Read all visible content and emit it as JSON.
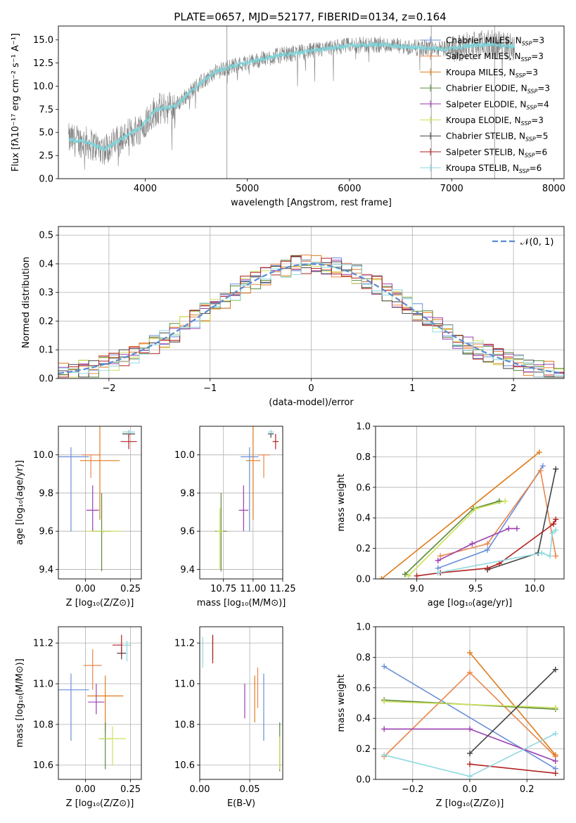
{
  "title": "PLATE=0657, MJD=52177, FIBERID=0134, z=0.164",
  "models": [
    {
      "name": "Chabrier MILES",
      "nssp": "3",
      "color": "#6a8fd8"
    },
    {
      "name": "Salpeter MILES",
      "nssp": "3",
      "color": "#e8864a"
    },
    {
      "name": "Kroupa MILES",
      "nssp": "3",
      "color": "#e07b1a"
    },
    {
      "name": "Chabrier ELODIE",
      "nssp": "3",
      "color": "#5a8a3a"
    },
    {
      "name": "Salpeter ELODIE",
      "nssp": "4",
      "color": "#9b3fb0"
    },
    {
      "name": "Kroupa ELODIE",
      "nssp": "3",
      "color": "#cde05a"
    },
    {
      "name": "Chabrier STELIB",
      "nssp": "5",
      "color": "#444444"
    },
    {
      "name": "Salpeter STELIB",
      "nssp": "6",
      "color": "#b22222"
    },
    {
      "name": "Kroupa STELIB",
      "nssp": "6",
      "color": "#8fd8e0"
    }
  ],
  "chart_data": [
    {
      "id": "spectrum",
      "type": "line",
      "xlabel": "wavelength [Angstrom, rest frame]",
      "ylabel": "Flux [fλ10⁻¹⁷ erg cm⁻² s⁻¹ A⁻¹]",
      "xlim": [
        3150,
        8100
      ],
      "ylim": [
        0,
        16.5
      ],
      "xticks": [
        4000,
        5000,
        6000,
        7000,
        8000
      ],
      "yticks": [
        "0.0",
        "2.5",
        "5.0",
        "7.5",
        "10.0",
        "12.5",
        "15.0"
      ],
      "data_color": "#808080",
      "model_color": "#7fd3d8",
      "continuum": [
        [
          3200,
          4.3
        ],
        [
          3400,
          4.0
        ],
        [
          3600,
          3.2
        ],
        [
          3800,
          4.5
        ],
        [
          3950,
          5.5
        ],
        [
          4100,
          7.4
        ],
        [
          4300,
          7.9
        ],
        [
          4500,
          10.0
        ],
        [
          4700,
          11.6
        ],
        [
          4900,
          12.3
        ],
        [
          5100,
          12.8
        ],
        [
          5300,
          13.3
        ],
        [
          5500,
          13.6
        ],
        [
          5700,
          13.9
        ],
        [
          6000,
          14.4
        ],
        [
          6300,
          14.5
        ],
        [
          6600,
          14.2
        ],
        [
          6900,
          14.0
        ],
        [
          7200,
          14.4
        ],
        [
          7400,
          14.5
        ],
        [
          7600,
          14.3
        ]
      ]
    },
    {
      "id": "residuals",
      "type": "histogram",
      "xlabel": "(data-model)/error",
      "ylabel": "Normed distribution",
      "xlim": [
        -2.5,
        2.5
      ],
      "ylim": [
        0,
        0.53
      ],
      "xticks": [
        "−2",
        "−1",
        "0",
        "1",
        "2"
      ],
      "yticks": [
        "0.0",
        "0.1",
        "0.2",
        "0.3",
        "0.4",
        "0.5"
      ],
      "gaussian_label": "𝒩(0, 1)",
      "gaussian_color": "#5b8bd0",
      "bin_width": 0.1
    },
    {
      "id": "age-vs-Z",
      "type": "scatter",
      "xlabel": "Z [log₁₀(Z/Z⊙)]",
      "ylabel": "age  [log₁₀(age/yr)]",
      "xlim": [
        -0.15,
        0.31
      ],
      "ylim": [
        9.35,
        10.15
      ],
      "xticks": [
        "0.00",
        "0.25"
      ],
      "yticks": [
        "9.4",
        "9.6",
        "9.8",
        "10.0"
      ],
      "points": [
        {
          "m": 0,
          "x": -0.08,
          "y": 9.99,
          "xe": 0.2,
          "ye": 0.01,
          "vy": [
            9.6,
            10.04
          ]
        },
        {
          "m": 1,
          "x": 0.03,
          "y": 10.0,
          "xe": 0.1,
          "ye": 0.01,
          "vy": [
            9.88,
            10.0
          ]
        },
        {
          "m": 2,
          "x": 0.08,
          "y": 9.97,
          "xe": 0.22,
          "ye": 0.01,
          "vy": [
            9.66,
            10.15
          ]
        },
        {
          "m": 3,
          "x": 0.09,
          "y": 9.6,
          "xe": 0.1,
          "ye": 0.01,
          "vy": [
            9.39,
            9.8
          ]
        },
        {
          "m": 4,
          "x": 0.04,
          "y": 9.71,
          "xe": 0.07,
          "ye": 0.01,
          "vy": [
            9.6,
            9.84
          ]
        },
        {
          "m": 5,
          "x": 0.1,
          "y": 9.6,
          "xe": 0.2,
          "ye": 0.01,
          "vy": [
            9.59,
            9.6
          ]
        },
        {
          "m": 6,
          "x": 0.24,
          "y": 10.11,
          "xe": 0.07,
          "ye": 0.01,
          "vy": [
            10.09,
            10.13
          ]
        },
        {
          "m": 7,
          "x": 0.24,
          "y": 10.07,
          "xe": 0.09,
          "ye": 0.01,
          "vy": [
            10.03,
            10.11
          ]
        },
        {
          "m": 8,
          "x": 0.24,
          "y": 10.12,
          "xe": 0.07,
          "ye": 0.01,
          "vy": [
            10.11,
            10.13
          ]
        }
      ]
    },
    {
      "id": "age-vs-mass",
      "type": "scatter",
      "xlabel": "mass [log₁₀(M/M⊙)]",
      "ylabel": "",
      "xlim": [
        10.55,
        11.25
      ],
      "ylim": [
        9.35,
        10.15
      ],
      "xticks": [
        "10.75",
        "11.00",
        "11.25"
      ],
      "yticks": [
        "9.4",
        "9.6",
        "9.8",
        "10.0"
      ],
      "points": [
        {
          "m": 0,
          "x": 10.97,
          "y": 9.99,
          "xe": 0.15,
          "ye": 0.01,
          "vy": [
            9.6,
            10.04
          ]
        },
        {
          "m": 1,
          "x": 11.09,
          "y": 10.0,
          "xe": 0.1,
          "ye": 0.01,
          "vy": [
            9.88,
            10.0
          ]
        },
        {
          "m": 2,
          "x": 11.0,
          "y": 9.97,
          "xe": 0.12,
          "ye": 0.01,
          "vy": [
            9.66,
            10.15
          ]
        },
        {
          "m": 3,
          "x": 10.73,
          "y": 9.6,
          "xe": 0.1,
          "ye": 0.01,
          "vy": [
            9.39,
            9.8
          ]
        },
        {
          "m": 4,
          "x": 10.92,
          "y": 9.71,
          "xe": 0.08,
          "ye": 0.01,
          "vy": [
            9.6,
            9.84
          ]
        },
        {
          "m": 5,
          "x": 10.72,
          "y": 9.6,
          "xe": 0.06,
          "ye": 0.01,
          "vy": [
            9.4,
            9.72
          ]
        },
        {
          "m": 6,
          "x": 11.15,
          "y": 10.11,
          "xe": 0.05,
          "ye": 0.01,
          "vy": [
            10.09,
            10.13
          ]
        },
        {
          "m": 7,
          "x": 11.19,
          "y": 10.07,
          "xe": 0.05,
          "ye": 0.01,
          "vy": [
            10.03,
            10.11
          ]
        },
        {
          "m": 8,
          "x": 11.15,
          "y": 10.12,
          "xe": 0.05,
          "ye": 0.01,
          "vy": [
            10.11,
            10.13
          ]
        }
      ]
    },
    {
      "id": "massweight-vs-age",
      "type": "line",
      "xlabel": "age  [log₁₀(age/yr)]",
      "ylabel": "mass weight",
      "xlim": [
        8.65,
        10.25
      ],
      "ylim": [
        0,
        1.0
      ],
      "xticks": [
        "9.0",
        "9.5",
        "10.0"
      ],
      "yticks": [
        "0.0",
        "0.2",
        "0.4",
        "0.6",
        "0.8",
        "1.0"
      ],
      "series": [
        {
          "m": 0,
          "points": [
            [
              9.18,
              0.07
            ],
            [
              9.6,
              0.19
            ],
            [
              10.07,
              0.74
            ]
          ]
        },
        {
          "m": 1,
          "points": [
            [
              9.2,
              0.15
            ],
            [
              9.6,
              0.23
            ],
            [
              10.05,
              0.71
            ],
            [
              10.18,
              0.15
            ]
          ]
        },
        {
          "m": 2,
          "points": [
            [
              8.7,
              0.0
            ],
            [
              10.04,
              0.83
            ]
          ]
        },
        {
          "m": 3,
          "points": [
            [
              8.9,
              0.03
            ],
            [
              9.48,
              0.46
            ],
            [
              9.7,
              0.51
            ]
          ]
        },
        {
          "m": 4,
          "points": [
            [
              9.18,
              0.12
            ],
            [
              9.47,
              0.23
            ],
            [
              9.78,
              0.33
            ],
            [
              9.85,
              0.33
            ]
          ]
        },
        {
          "m": 5,
          "points": [
            [
              8.93,
              0.02
            ],
            [
              9.5,
              0.46
            ],
            [
              9.75,
              0.51
            ]
          ]
        },
        {
          "m": 6,
          "points": [
            [
              9.6,
              0.06
            ],
            [
              10.03,
              0.17
            ],
            [
              10.18,
              0.72
            ]
          ]
        },
        {
          "m": 7,
          "points": [
            [
              9.0,
              0.02
            ],
            [
              9.2,
              0.04
            ],
            [
              9.6,
              0.07
            ],
            [
              9.7,
              0.1
            ],
            [
              10.16,
              0.36
            ],
            [
              10.18,
              0.39
            ]
          ]
        },
        {
          "m": 8,
          "points": [
            [
              9.18,
              0.04
            ],
            [
              10.06,
              0.17
            ],
            [
              10.13,
              0.15
            ],
            [
              10.15,
              0.3
            ],
            [
              10.18,
              0.32
            ]
          ]
        }
      ]
    },
    {
      "id": "mass-vs-Z",
      "type": "scatter",
      "xlabel": "Z [log₁₀(Z/Z⊙)]",
      "ylabel": "mass [log₁₀(M/M⊙)]",
      "xlim": [
        -0.15,
        0.31
      ],
      "ylim": [
        10.53,
        11.28
      ],
      "xticks": [
        "0.00",
        "0.25"
      ],
      "yticks": [
        "10.6",
        "10.8",
        "11.0",
        "11.2"
      ],
      "points": [
        {
          "m": 0,
          "x": -0.08,
          "y": 10.97,
          "xe": 0.2,
          "ye": 0.01,
          "vy": [
            10.72,
            11.05
          ]
        },
        {
          "m": 1,
          "x": 0.04,
          "y": 11.09,
          "xe": 0.1,
          "ye": 0.01,
          "vy": [
            10.97,
            11.17
          ]
        },
        {
          "m": 2,
          "x": 0.11,
          "y": 10.94,
          "xe": 0.2,
          "ye": 0.01,
          "vy": [
            10.76,
            11.04
          ]
        },
        {
          "m": 3,
          "x": 0.11,
          "y": 10.73,
          "xe": 0.07,
          "ye": 0.01,
          "vy": [
            10.58,
            10.81
          ]
        },
        {
          "m": 4,
          "x": 0.06,
          "y": 10.91,
          "xe": 0.09,
          "ye": 0.01,
          "vy": [
            10.85,
            11.0
          ]
        },
        {
          "m": 5,
          "x": 0.15,
          "y": 10.73,
          "xe": 0.15,
          "ye": 0.01,
          "vy": [
            10.6,
            10.79
          ]
        },
        {
          "m": 6,
          "x": 0.2,
          "y": 11.15,
          "xe": 0.05,
          "ye": 0.01,
          "vy": [
            11.12,
            11.18
          ]
        },
        {
          "m": 7,
          "x": 0.2,
          "y": 11.19,
          "xe": 0.1,
          "ye": 0.01,
          "vy": [
            11.14,
            11.24
          ]
        },
        {
          "m": 8,
          "x": 0.23,
          "y": 11.19,
          "xe": 0.05,
          "ye": 0.01,
          "vy": [
            11.11,
            11.21
          ]
        }
      ]
    },
    {
      "id": "mass-vs-ebv",
      "type": "scatter",
      "xlabel": "E(B-V)",
      "ylabel": "",
      "xlim": [
        0.0,
        0.083
      ],
      "ylim": [
        10.53,
        11.28
      ],
      "xticks": [
        "0.00",
        "0.05"
      ],
      "yticks": [
        "10.6",
        "10.8",
        "11.0",
        "11.2"
      ],
      "points": [
        {
          "m": 0,
          "x": 0.064,
          "y": 10.9,
          "vy": [
            10.72,
            11.05
          ]
        },
        {
          "m": 1,
          "x": 0.058,
          "y": 10.99,
          "vy": [
            10.88,
            11.08
          ]
        },
        {
          "m": 2,
          "x": 0.055,
          "y": 10.95,
          "vy": [
            10.81,
            11.04
          ]
        },
        {
          "m": 3,
          "x": 0.08,
          "y": 10.7,
          "vy": [
            10.57,
            10.81
          ]
        },
        {
          "m": 4,
          "x": 0.045,
          "y": 10.92,
          "vy": [
            10.83,
            11.0
          ]
        },
        {
          "m": 5,
          "x": 0.08,
          "y": 10.66,
          "vy": [
            10.58,
            10.74
          ]
        },
        {
          "m": 6,
          "x": 0.013,
          "y": 11.17,
          "vy": [
            11.12,
            11.24
          ]
        },
        {
          "m": 7,
          "x": 0.013,
          "y": 11.19,
          "vy": [
            11.1,
            11.24
          ]
        },
        {
          "m": 8,
          "x": 0.003,
          "y": 11.15,
          "vy": [
            11.08,
            11.23
          ]
        }
      ]
    },
    {
      "id": "massweight-vs-Z",
      "type": "line",
      "xlabel": "Z [log₁₀(Z/Z⊙)]",
      "ylabel": "mass weight",
      "xlim": [
        -0.33,
        0.33
      ],
      "ylim": [
        0,
        1.0
      ],
      "xticks": [
        "−0.2",
        "0.0",
        "0.2"
      ],
      "yticks": [
        "0.0",
        "0.2",
        "0.4",
        "0.6",
        "0.8",
        "1.0"
      ],
      "series": [
        {
          "m": 0,
          "points": [
            [
              -0.3,
              0.74
            ],
            [
              0.3,
              0.07
            ]
          ]
        },
        {
          "m": 1,
          "points": [
            [
              -0.3,
              0.15
            ],
            [
              0.0,
              0.7
            ],
            [
              0.3,
              0.15
            ]
          ]
        },
        {
          "m": 2,
          "points": [
            [
              0.0,
              0.83
            ],
            [
              0.3,
              0.16
            ]
          ]
        },
        {
          "m": 3,
          "points": [
            [
              -0.3,
              0.52
            ],
            [
              0.3,
              0.46
            ]
          ]
        },
        {
          "m": 4,
          "points": [
            [
              -0.3,
              0.33
            ],
            [
              0.0,
              0.33
            ],
            [
              0.3,
              0.12
            ]
          ]
        },
        {
          "m": 5,
          "points": [
            [
              -0.3,
              0.51
            ],
            [
              0.3,
              0.47
            ]
          ]
        },
        {
          "m": 6,
          "points": [
            [
              0.0,
              0.17
            ],
            [
              0.3,
              0.72
            ]
          ]
        },
        {
          "m": 7,
          "points": [
            [
              0.0,
              0.1
            ],
            [
              0.3,
              0.04
            ]
          ]
        },
        {
          "m": 8,
          "points": [
            [
              -0.3,
              0.16
            ],
            [
              0.0,
              0.02
            ],
            [
              0.3,
              0.3
            ]
          ]
        }
      ]
    }
  ]
}
